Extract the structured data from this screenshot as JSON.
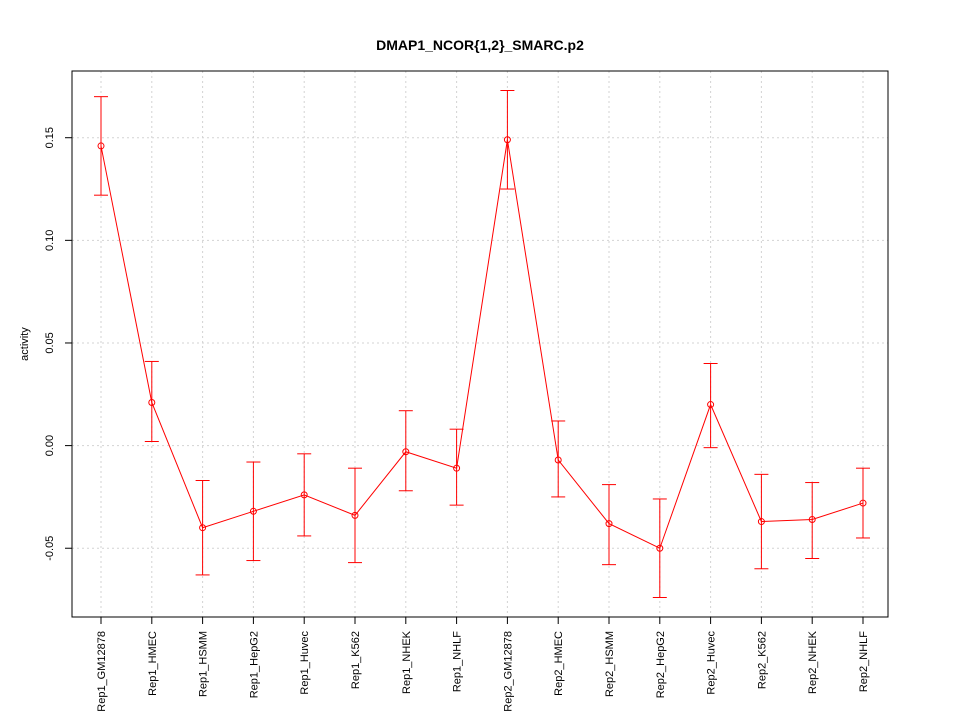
{
  "chart_data": {
    "type": "line",
    "title": "DMAP1_NCOR{1,2}_SMARC.p2",
    "xlabel": "",
    "ylabel": "activity",
    "categories": [
      "Rep1_GM12878",
      "Rep1_HMEC",
      "Rep1_HSMM",
      "Rep1_HepG2",
      "Rep1_Huvec",
      "Rep1_K562",
      "Rep1_NHEK",
      "Rep1_NHLF",
      "Rep2_GM12878",
      "Rep2_HMEC",
      "Rep2_HSMM",
      "Rep2_HepG2",
      "Rep2_Huvec",
      "Rep2_K562",
      "Rep2_NHEK",
      "Rep2_NHLF"
    ],
    "series": [
      {
        "values": [
          0.146,
          0.021,
          -0.04,
          -0.032,
          -0.024,
          -0.034,
          -0.003,
          -0.011,
          0.149,
          -0.007,
          -0.038,
          -0.05,
          0.02,
          -0.037,
          -0.036,
          -0.028
        ],
        "err_low": [
          0.122,
          0.002,
          -0.063,
          -0.056,
          -0.044,
          -0.057,
          -0.022,
          -0.029,
          0.125,
          -0.025,
          -0.058,
          -0.074,
          -0.001,
          -0.06,
          -0.055,
          -0.045
        ],
        "err_high": [
          0.17,
          0.041,
          -0.017,
          -0.008,
          -0.004,
          -0.011,
          0.017,
          0.008,
          0.173,
          0.012,
          -0.019,
          -0.026,
          0.04,
          -0.014,
          -0.018,
          -0.011
        ]
      }
    ],
    "yticks": [
      -0.05,
      0.0,
      0.05,
      0.1,
      0.15
    ],
    "ytick_labels": [
      "-0.05",
      "0.00",
      "0.05",
      "0.10",
      "0.15"
    ],
    "ylim": [
      -0.0835,
      0.1825
    ],
    "grid": true,
    "colors": {
      "series": "#ff0000",
      "grid": "#d3d3d3",
      "axis": "#000000"
    }
  }
}
